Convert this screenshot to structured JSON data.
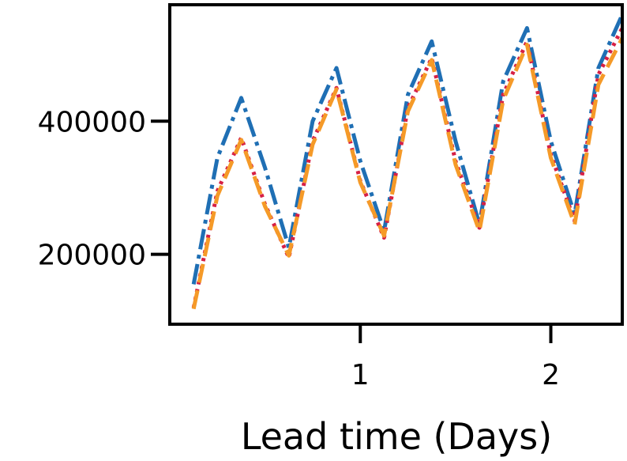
{
  "chart_data": {
    "type": "line",
    "title": "",
    "xlabel": "Lead time (Days)",
    "ylabel": "",
    "xlim": [
      0,
      2.375
    ],
    "ylim": [
      95000,
      575000
    ],
    "x_ticks": [
      1,
      2
    ],
    "x_tick_labels": [
      "1",
      "2"
    ],
    "y_ticks": [
      200000,
      400000
    ],
    "y_tick_labels": [
      "200000",
      "400000"
    ],
    "grid": false,
    "legend": false,
    "x": [
      0.125,
      0.25,
      0.375,
      0.5,
      0.625,
      0.75,
      0.875,
      1.0,
      1.125,
      1.25,
      1.375,
      1.5,
      1.625,
      1.75,
      1.875,
      2.0,
      2.125,
      2.25,
      2.375
    ],
    "series": [
      {
        "color": "#1f6fb4",
        "style": "dashdot",
        "values": [
          155000,
          345000,
          435000,
          330000,
          210000,
          400000,
          480000,
          340000,
          235000,
          440000,
          520000,
          370000,
          245000,
          460000,
          540000,
          370000,
          260000,
          480000,
          560000
        ]
      },
      {
        "color": "#d62045",
        "style": "dotted",
        "values": [
          120000,
          295000,
          375000,
          275000,
          195000,
          370000,
          450000,
          310000,
          225000,
          420000,
          495000,
          340000,
          240000,
          440000,
          520000,
          350000,
          250000,
          470000,
          540000
        ]
      },
      {
        "color": "#f59a28",
        "style": "dashed",
        "values": [
          118000,
          288000,
          372000,
          272000,
          198000,
          365000,
          448000,
          308000,
          228000,
          415000,
          492000,
          335000,
          235000,
          432000,
          515000,
          345000,
          245000,
          455000,
          525000
        ]
      }
    ]
  }
}
